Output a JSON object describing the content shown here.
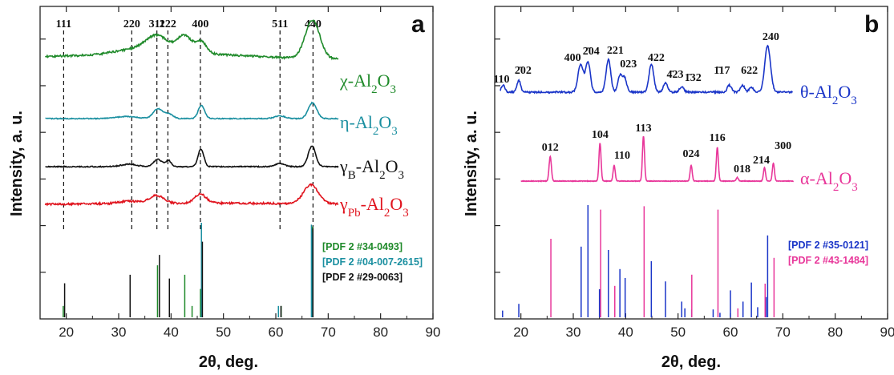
{
  "chart_data": [
    {
      "panel": "a",
      "type": "line",
      "xlabel": "2θ, deg.",
      "ylabel": "Intensity, a. u.",
      "xlim": [
        15,
        90
      ],
      "xticks": [
        20,
        30,
        40,
        50,
        60,
        70,
        80,
        90
      ],
      "reflections": [
        {
          "hkl": "111",
          "x": 19.5
        },
        {
          "hkl": "220",
          "x": 32.5
        },
        {
          "hkl": "311",
          "x": 37.3
        },
        {
          "hkl": "222",
          "x": 39.4
        },
        {
          "hkl": "400",
          "x": 45.6
        },
        {
          "hkl": "511",
          "x": 60.8
        },
        {
          "hkl": "440",
          "x": 67.1
        }
      ],
      "series": [
        {
          "name": "χ-Al2O3",
          "name_main": "χ-Al",
          "name_sub": "2",
          "name_mid": "O",
          "name_sub2": "3",
          "color": "#1f8a2a",
          "peaks": [
            [
              37.3,
              0.45,
              2.2
            ],
            [
              42.6,
              0.45,
              1.4
            ],
            [
              45.8,
              0.3,
              1.0
            ],
            [
              67.0,
              1.0,
              1.4
            ],
            [
              32.0,
              0.1,
              3.0
            ]
          ],
          "base": 0.0
        },
        {
          "name": "η-Al2O3",
          "name_main": "η-Al",
          "name_sub": "2",
          "name_mid": "O",
          "name_sub2": "3",
          "color": "#1a8fa0",
          "peaks": [
            [
              37.5,
              0.55,
              0.9
            ],
            [
              39.6,
              0.25,
              0.8
            ],
            [
              45.8,
              0.75,
              0.6
            ],
            [
              60.8,
              0.15,
              1.0
            ],
            [
              67.0,
              0.9,
              0.8
            ],
            [
              31.5,
              0.12,
              2.0
            ]
          ],
          "base": 0.0
        },
        {
          "name": "γB-Al2O3",
          "name_main": "γ",
          "name_sub": "B",
          "name_mid": "-Al",
          "name_sub2": "2",
          "name_end": "O",
          "name_sub3": "3",
          "color": "#111111",
          "peaks": [
            [
              37.5,
              0.35,
              0.8
            ],
            [
              39.5,
              0.3,
              0.5
            ],
            [
              45.7,
              0.85,
              0.55
            ],
            [
              60.8,
              0.15,
              0.9
            ],
            [
              66.9,
              1.0,
              0.7
            ],
            [
              32.0,
              0.12,
              1.5
            ]
          ],
          "base": 0.0
        },
        {
          "name": "γPb-Al2O3",
          "name_main": "γ",
          "name_sub": "Pb",
          "name_mid": "-Al",
          "name_sub2": "2",
          "name_end": "O",
          "name_sub3": "3",
          "color": "#e0141e",
          "peaks": [
            [
              37.2,
              0.35,
              1.4
            ],
            [
              45.6,
              0.4,
              1.1
            ],
            [
              66.7,
              0.85,
              1.4
            ],
            [
              32.0,
              0.1,
              2.0
            ]
          ],
          "base": 0.0
        }
      ],
      "references": [
        {
          "label": "[PDF 2 #34-0493]",
          "color": "#1f8a2a",
          "lines": [
            [
              19.6,
              0.12
            ],
            [
              37.6,
              0.55
            ],
            [
              42.8,
              0.45
            ],
            [
              44.2,
              0.12
            ],
            [
              45.8,
              0.3
            ],
            [
              61.2,
              0.12
            ],
            [
              67.2,
              0.96
            ]
          ]
        },
        {
          "label": "[PDF 2 #04-007-2615]",
          "color": "#1a8fa0",
          "lines": [
            [
              45.8,
              1.0
            ],
            [
              60.5,
              0.12
            ],
            [
              66.8,
              0.98
            ],
            [
              67.0,
              0.9
            ]
          ]
        },
        {
          "label": "[PDF 2 #29-0063]",
          "color": "#111111",
          "lines": [
            [
              19.5,
              0.36
            ],
            [
              32.0,
              0.45
            ],
            [
              37.6,
              0.66
            ],
            [
              39.5,
              0.41
            ],
            [
              45.8,
              0.8
            ],
            [
              60.8,
              0.12
            ],
            [
              66.9,
              0.94
            ]
          ]
        }
      ]
    },
    {
      "panel": "b",
      "type": "line",
      "xlabel": "2θ, deg.",
      "ylabel": "Intensity, a. u.",
      "xlim": [
        15,
        90
      ],
      "xticks": [
        20,
        30,
        40,
        50,
        60,
        70,
        80,
        90
      ],
      "theta_labels": [
        {
          "hkl": "110",
          "x": 16.6
        },
        {
          "hkl": "2̄02",
          "x": 19.8
        },
        {
          "hkl": "400",
          "x": 31.4
        },
        {
          "hkl": "2̄04",
          "x": 32.8
        },
        {
          "hkl": "221",
          "x": 36.8
        },
        {
          "hkl": "023",
          "x": 39.6
        },
        {
          "hkl": "422",
          "x": 44.9
        },
        {
          "hkl": "4̄23",
          "x": 47.6
        },
        {
          "hkl": "1̄32",
          "x": 50.7
        },
        {
          "hkl": "1̄17",
          "x": 59.6
        },
        {
          "hkl": "622",
          "x": 62.4
        },
        {
          "hkl": "240",
          "x": 67.1
        }
      ],
      "alpha_labels": [
        {
          "hkl": "012",
          "x": 25.6
        },
        {
          "hkl": "104",
          "x": 35.1
        },
        {
          "hkl": "110",
          "x": 37.8
        },
        {
          "hkl": "113",
          "x": 43.4
        },
        {
          "hkl": "024",
          "x": 52.5
        },
        {
          "hkl": "116",
          "x": 57.5
        },
        {
          "hkl": "018",
          "x": 61.3
        },
        {
          "hkl": "214",
          "x": 66.5
        },
        {
          "hkl": "300",
          "x": 68.2
        }
      ],
      "series": [
        {
          "name": "θ-Al2O3",
          "color": "#1a35c8",
          "peaks": [
            [
              16.6,
              0.15,
              0.35
            ],
            [
              19.6,
              0.25,
              0.35
            ],
            [
              31.4,
              0.6,
              0.5
            ],
            [
              32.8,
              0.65,
              0.45
            ],
            [
              36.7,
              0.7,
              0.45
            ],
            [
              38.9,
              0.35,
              0.4
            ],
            [
              39.8,
              0.3,
              0.4
            ],
            [
              44.9,
              0.6,
              0.45
            ],
            [
              47.6,
              0.2,
              0.4
            ],
            [
              50.7,
              0.12,
              0.4
            ],
            [
              59.8,
              0.15,
              0.4
            ],
            [
              62.3,
              0.15,
              0.4
            ],
            [
              64.0,
              0.1,
              0.4
            ],
            [
              67.1,
              1.0,
              0.55
            ]
          ]
        },
        {
          "name": "α-Al2O3",
          "color": "#e8379a",
          "peaks": [
            [
              25.6,
              0.55,
              0.22
            ],
            [
              35.1,
              0.85,
              0.2
            ],
            [
              37.8,
              0.35,
              0.2
            ],
            [
              43.4,
              1.0,
              0.2
            ],
            [
              52.5,
              0.35,
              0.2
            ],
            [
              57.5,
              0.75,
              0.2
            ],
            [
              61.3,
              0.08,
              0.2
            ],
            [
              66.5,
              0.3,
              0.2
            ],
            [
              68.2,
              0.4,
              0.2
            ]
          ]
        }
      ],
      "references": [
        {
          "label": "[PDF 2 #35-0121]",
          "color": "#1a35c8",
          "lines": [
            [
              16.5,
              0.06
            ],
            [
              19.6,
              0.12
            ],
            [
              31.5,
              0.63
            ],
            [
              32.8,
              1.0
            ],
            [
              35.0,
              0.25
            ],
            [
              36.7,
              0.6
            ],
            [
              38.9,
              0.43
            ],
            [
              39.9,
              0.35
            ],
            [
              44.9,
              0.5
            ],
            [
              47.6,
              0.32
            ],
            [
              50.7,
              0.14
            ],
            [
              51.3,
              0.08
            ],
            [
              52.6,
              0.07
            ],
            [
              56.7,
              0.07
            ],
            [
              58.0,
              0.04
            ],
            [
              60.0,
              0.24
            ],
            [
              62.4,
              0.14
            ],
            [
              64.0,
              0.31
            ],
            [
              65.2,
              0.09
            ],
            [
              66.8,
              0.18
            ],
            [
              67.1,
              0.73
            ]
          ]
        },
        {
          "label": "[PDF 2 #43-1484]",
          "color": "#e8379a",
          "lines": [
            [
              25.6,
              0.7
            ],
            [
              35.1,
              0.96
            ],
            [
              37.8,
              0.28
            ],
            [
              43.4,
              0.99
            ],
            [
              52.5,
              0.38
            ],
            [
              57.5,
              0.96
            ],
            [
              61.3,
              0.08
            ],
            [
              66.5,
              0.3
            ],
            [
              68.2,
              0.53
            ]
          ]
        }
      ]
    }
  ],
  "labels": {
    "panel_a": "a",
    "panel_b": "b",
    "ylabel": "Intensity, a. u.",
    "xlabel_a": "2θ, deg.",
    "xlabel_b": "2θ, deg."
  }
}
